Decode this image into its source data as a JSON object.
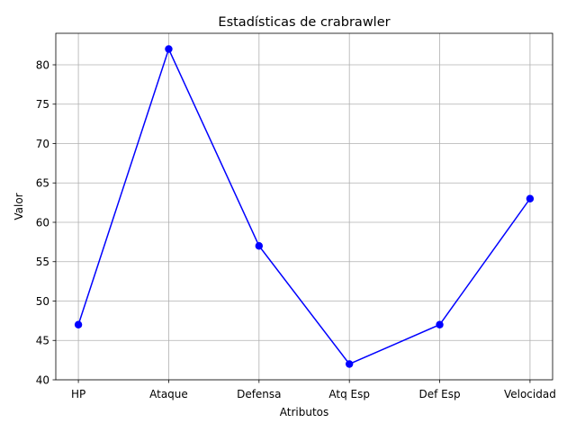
{
  "chart_data": {
    "type": "line",
    "title": "Estadísticas de crabrawler",
    "xlabel": "Atributos",
    "ylabel": "Valor",
    "categories": [
      "HP",
      "Ataque",
      "Defensa",
      "Atq Esp",
      "Def Esp",
      "Velocidad"
    ],
    "series": [
      {
        "values": [
          47,
          82,
          57,
          42,
          47,
          63
        ],
        "color": "#0000ff",
        "marker": "circle"
      }
    ],
    "ylim": [
      40,
      84
    ],
    "yticks": [
      40,
      45,
      50,
      55,
      60,
      65,
      70,
      75,
      80
    ],
    "grid": true
  }
}
